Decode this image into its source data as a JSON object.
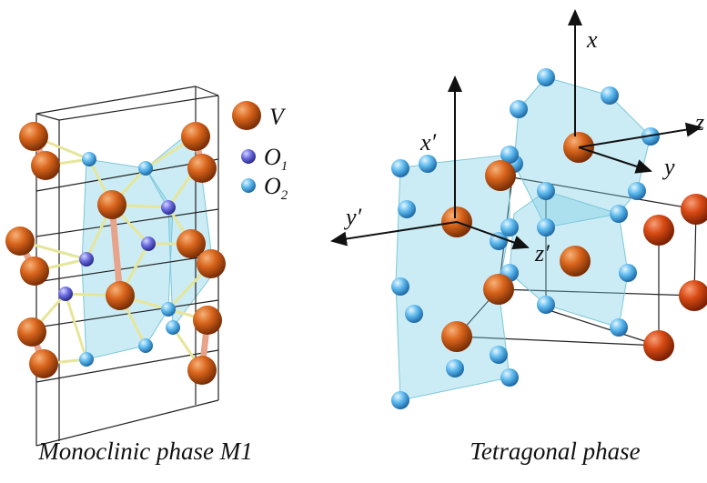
{
  "left_panel": {
    "caption": "Monoclinic phase M1",
    "legend": [
      {
        "label": "V"
      },
      {
        "label": "O",
        "subscript": "1"
      },
      {
        "label": "O",
        "subscript": "2"
      }
    ]
  },
  "right_panel": {
    "caption": "Tetragonal  phase",
    "axes": [
      {
        "label": "x"
      },
      {
        "label": "y"
      },
      {
        "label": "z"
      },
      {
        "label": "x′"
      },
      {
        "label": "y′"
      },
      {
        "label": "z′"
      }
    ]
  }
}
